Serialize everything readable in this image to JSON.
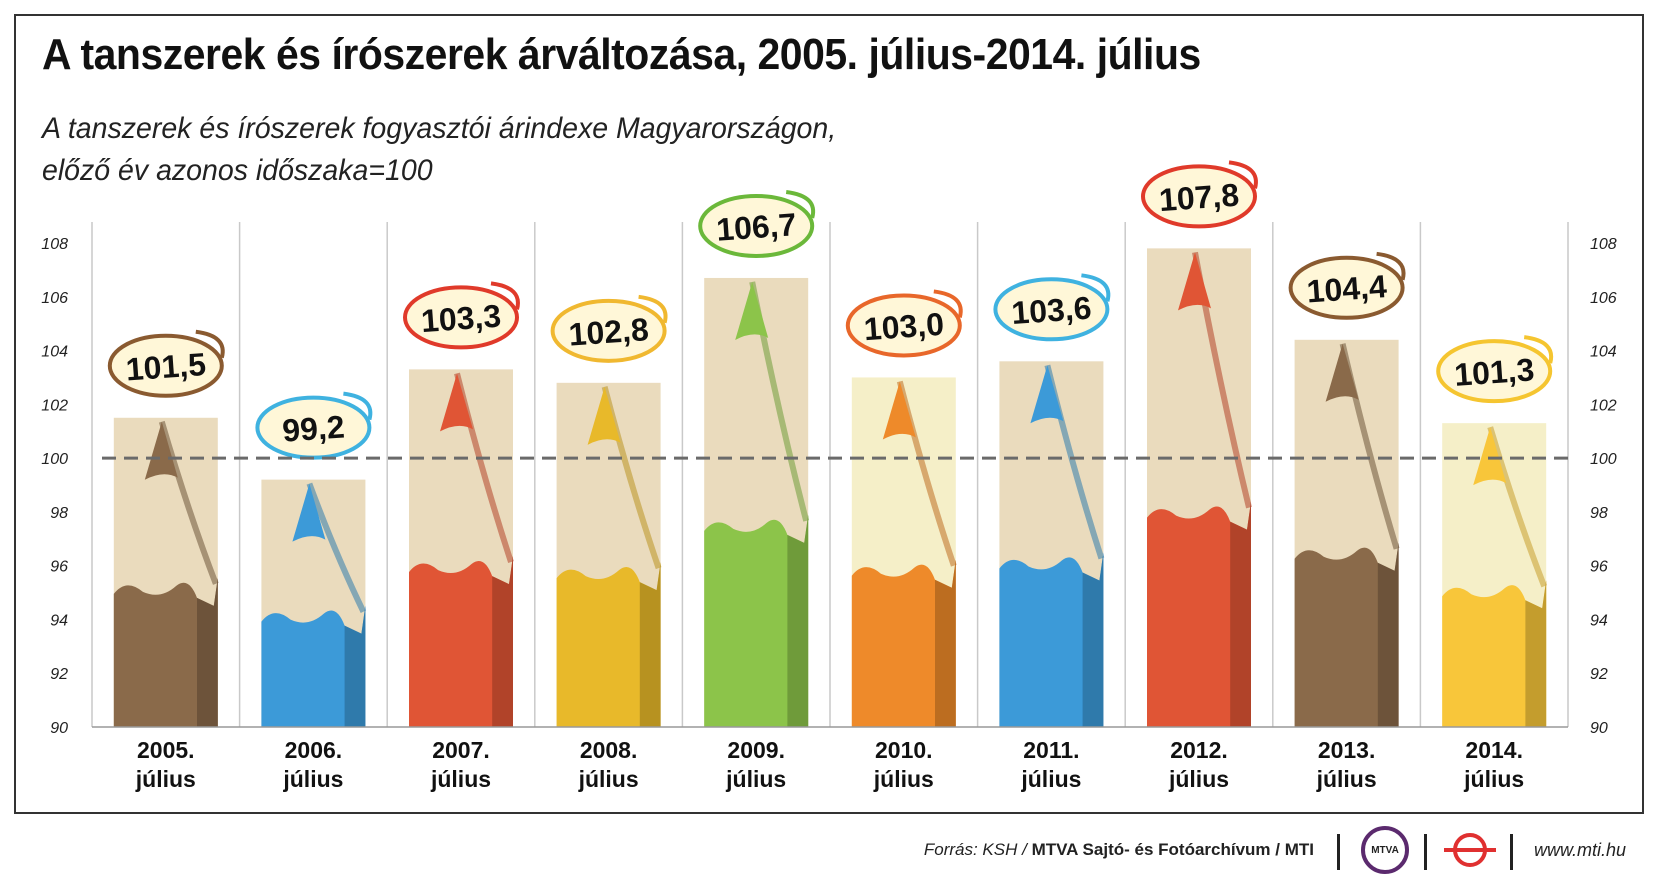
{
  "title": "A tanszerek és írószerek árváltozása, 2005. július-2014. július",
  "subtitle_line1": "A tanszerek és írószerek fogyasztói árindexe Magyarországon,",
  "subtitle_line2": "előző év azonos időszaka=100",
  "chart_data": {
    "type": "bar",
    "categories": [
      [
        "2005.",
        "július"
      ],
      [
        "2006.",
        "július"
      ],
      [
        "2007.",
        "július"
      ],
      [
        "2008.",
        "július"
      ],
      [
        "2009.",
        "július"
      ],
      [
        "2010.",
        "július"
      ],
      [
        "2011.",
        "július"
      ],
      [
        "2012.",
        "július"
      ],
      [
        "2013.",
        "július"
      ],
      [
        "2014.",
        "július"
      ]
    ],
    "values": [
      101.5,
      99.2,
      103.3,
      102.8,
      106.7,
      103.0,
      103.6,
      107.8,
      104.4,
      101.3
    ],
    "value_labels": [
      "101,5",
      "99,2",
      "103,3",
      "102,8",
      "106,7",
      "103,0",
      "103,6",
      "107,8",
      "104,4",
      "101,3"
    ],
    "ylim": [
      90,
      108
    ],
    "yticks": [
      "90",
      "92",
      "94",
      "96",
      "98",
      "100",
      "102",
      "104",
      "106",
      "108"
    ],
    "reference_line": 100,
    "grid": "vertical separators",
    "pencil_colors": [
      "#8a6a4a",
      "#3c9ad8",
      "#e05535",
      "#e8b92a",
      "#8cc44a",
      "#ee8a2a",
      "#3c9ad8",
      "#e05535",
      "#8a6a4a",
      "#f8c63a"
    ],
    "label_ring_colors": [
      "#8a5a30",
      "#3fb2e0",
      "#e03a2a",
      "#f0b830",
      "#6bb83a",
      "#e8672a",
      "#3fb2e0",
      "#e03a2a",
      "#8a5a30",
      "#f5c530"
    ]
  },
  "footer": {
    "source_prefix": "Forrás: KSH / ",
    "source_bold": "MTVA Sajtó- és Fotóarchívum",
    "source_suffix": " / MTI",
    "mtva_logo_text": "MTVA",
    "website": "www.mti.hu"
  }
}
